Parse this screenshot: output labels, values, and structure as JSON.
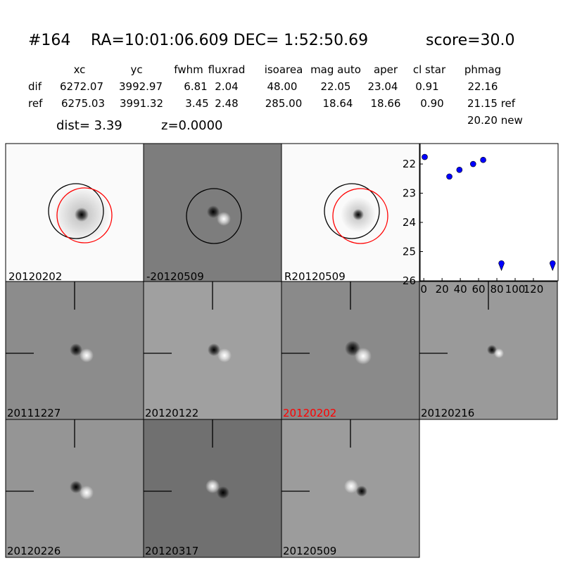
{
  "header": {
    "id": "#164",
    "coords": "RA=10:01:06.609 DEC= 1:52:50.69",
    "score": "score=30.0"
  },
  "table": {
    "columns": [
      "xc",
      "yc",
      "fwhm",
      "fluxrad",
      "isoarea",
      "mag auto",
      "aper",
      "cl star",
      "phmag"
    ],
    "rows": [
      {
        "label": "dif",
        "cells": [
          "6272.07",
          "3992.97",
          "6.81",
          "2.04",
          "48.00",
          "22.05",
          "23.04",
          "0.91",
          "22.16"
        ]
      },
      {
        "label": "ref",
        "cells": [
          "6275.03",
          "3991.32",
          "3.45",
          "2.48",
          "285.00",
          "18.64",
          "18.66",
          "0.90",
          "21.15 ref"
        ]
      }
    ],
    "extra": "20.20 new"
  },
  "info": {
    "dist": "dist=  3.39",
    "z": "z=0.0000"
  },
  "panels": [
    {
      "label": "20120202",
      "color": "black"
    },
    {
      "label": "-20120509",
      "color": "black"
    },
    {
      "label": "R20120509",
      "color": "black"
    },
    {
      "label": "20111227",
      "color": "black"
    },
    {
      "label": "20120122",
      "color": "black"
    },
    {
      "label": "20120202",
      "color": "red"
    },
    {
      "label": "20120216",
      "color": "black"
    },
    {
      "label": "20120226",
      "color": "black"
    },
    {
      "label": "20120317",
      "color": "black"
    },
    {
      "label": "20120509",
      "color": "black"
    }
  ],
  "chart_data": {
    "type": "scatter",
    "color": "blue",
    "x": [
      1,
      28,
      39,
      54,
      65,
      85,
      141
    ],
    "values": [
      21.76,
      22.43,
      22.2,
      22.0,
      21.86,
      25.5,
      25.5
    ],
    "markers": [
      "circle",
      "circle",
      "circle",
      "circle",
      "circle",
      "limit",
      "limit"
    ],
    "xlim": [
      -4,
      147
    ],
    "xticks": [
      0,
      20,
      40,
      60,
      80,
      100,
      120
    ],
    "ylim": [
      26,
      21.3
    ],
    "yticks": [
      22,
      23,
      24,
      25,
      26
    ]
  }
}
